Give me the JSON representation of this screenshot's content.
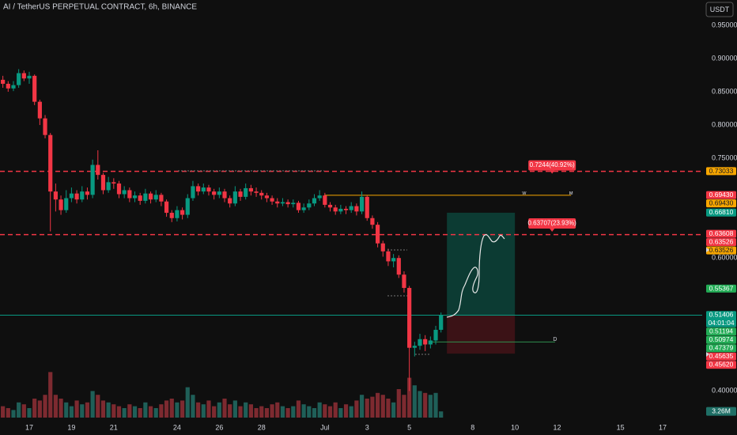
{
  "chart_data": {
    "type": "candlestick",
    "title": "AI / TetherUS PERPETUAL CONTRACT, 6h, BINANCE",
    "currency": "USDT",
    "up_color": "#089981",
    "down_color": "#f23645",
    "volume_up_color": "#1f5f58",
    "volume_down_color": "#7d2a30",
    "xlim": [
      15.614,
      48.87
    ],
    "xticks": [
      17,
      19,
      21,
      24,
      26,
      28,
      {
        "value": 31,
        "label": "Jul"
      },
      {
        "value": 33,
        "label": "3"
      },
      {
        "value": 35,
        "label": "5"
      },
      {
        "value": 38,
        "label": "8"
      },
      {
        "value": 40,
        "label": "10"
      },
      {
        "value": 42,
        "label": "12"
      },
      {
        "value": 45,
        "label": "15"
      },
      {
        "value": 47,
        "label": "17"
      }
    ],
    "ylim": [
      0.36,
      0.988
    ],
    "yticks": [
      {
        "value": 0.95,
        "label": "0.95000"
      },
      {
        "value": 0.9,
        "label": "0.90000"
      },
      {
        "value": 0.85,
        "label": "0.85000"
      },
      {
        "value": 0.8,
        "label": "0.80000"
      },
      {
        "value": 0.75,
        "label": "0.75000"
      },
      {
        "value": 0.6,
        "label": "0.60000"
      },
      {
        "value": 0.4,
        "label": "0.40000"
      }
    ],
    "x": [
      15.75,
      16,
      16.25,
      16.5,
      16.75,
      17,
      17.25,
      17.5,
      17.75,
      18,
      18.25,
      18.5,
      18.75,
      19,
      19.25,
      19.5,
      19.75,
      20,
      20.25,
      20.5,
      20.75,
      21,
      21.25,
      21.5,
      21.75,
      22,
      22.25,
      22.5,
      22.75,
      23,
      23.25,
      23.5,
      23.75,
      24,
      24.25,
      24.5,
      24.75,
      25,
      25.25,
      25.5,
      25.75,
      26,
      26.25,
      26.5,
      26.75,
      27,
      27.25,
      27.5,
      27.75,
      28,
      28.25,
      28.5,
      28.75,
      29,
      29.25,
      29.5,
      29.75,
      30,
      30.25,
      30.5,
      30.75,
      31,
      31.25,
      31.5,
      31.75,
      32,
      32.25,
      32.5,
      32.75,
      33,
      33.25,
      33.5,
      33.75,
      34,
      34.25,
      34.5,
      34.75,
      35,
      35.25,
      35.5,
      35.75,
      36,
      36.25,
      36.5
    ],
    "open": [
      0.868,
      0.862,
      0.855,
      0.86,
      0.878,
      0.87,
      0.874,
      0.835,
      0.81,
      0.785,
      0.7,
      0.688,
      0.672,
      0.69,
      0.697,
      0.688,
      0.7,
      0.695,
      0.74,
      0.725,
      0.702,
      0.714,
      0.712,
      0.696,
      0.702,
      0.69,
      0.694,
      0.686,
      0.697,
      0.688,
      0.695,
      0.685,
      0.668,
      0.66,
      0.672,
      0.665,
      0.69,
      0.708,
      0.7,
      0.706,
      0.7,
      0.695,
      0.7,
      0.69,
      0.682,
      0.7,
      0.692,
      0.705,
      0.7,
      0.698,
      0.694,
      0.69,
      0.685,
      0.682,
      0.684,
      0.681,
      0.683,
      0.672,
      0.676,
      0.682,
      0.69,
      0.694,
      0.68,
      0.676,
      0.67,
      0.674,
      0.672,
      0.678,
      0.67,
      0.692,
      0.66,
      0.65,
      0.622,
      0.61,
      0.595,
      0.6,
      0.575,
      0.555,
      0.465,
      0.468,
      0.478,
      0.47,
      0.476,
      0.492
    ],
    "high": [
      0.874,
      0.866,
      0.866,
      0.884,
      0.882,
      0.88,
      0.876,
      0.838,
      0.815,
      0.788,
      0.712,
      0.694,
      0.702,
      0.706,
      0.702,
      0.708,
      0.706,
      0.748,
      0.762,
      0.728,
      0.722,
      0.72,
      0.716,
      0.708,
      0.706,
      0.7,
      0.698,
      0.704,
      0.7,
      0.702,
      0.698,
      0.688,
      0.672,
      0.678,
      0.676,
      0.696,
      0.716,
      0.712,
      0.712,
      0.71,
      0.704,
      0.706,
      0.704,
      0.694,
      0.708,
      0.704,
      0.712,
      0.71,
      0.706,
      0.702,
      0.698,
      0.694,
      0.69,
      0.69,
      0.688,
      0.688,
      0.686,
      0.682,
      0.688,
      0.696,
      0.702,
      0.698,
      0.684,
      0.68,
      0.68,
      0.678,
      0.684,
      0.682,
      0.7,
      0.694,
      0.664,
      0.654,
      0.626,
      0.614,
      0.606,
      0.604,
      0.58,
      0.558,
      0.474,
      0.486,
      0.484,
      0.482,
      0.498,
      0.518
    ],
    "low": [
      0.856,
      0.85,
      0.851,
      0.856,
      0.866,
      0.862,
      0.83,
      0.8,
      0.78,
      0.64,
      0.67,
      0.665,
      0.668,
      0.684,
      0.682,
      0.684,
      0.688,
      0.69,
      0.718,
      0.696,
      0.698,
      0.704,
      0.69,
      0.69,
      0.684,
      0.684,
      0.68,
      0.682,
      0.682,
      0.684,
      0.678,
      0.662,
      0.654,
      0.655,
      0.658,
      0.66,
      0.686,
      0.694,
      0.696,
      0.694,
      0.688,
      0.69,
      0.684,
      0.676,
      0.678,
      0.686,
      0.688,
      0.694,
      0.692,
      0.688,
      0.684,
      0.68,
      0.676,
      0.678,
      0.676,
      0.676,
      0.668,
      0.668,
      0.672,
      0.678,
      0.686,
      0.676,
      0.67,
      0.665,
      0.666,
      0.666,
      0.668,
      0.664,
      0.666,
      0.656,
      0.644,
      0.616,
      0.602,
      0.588,
      0.586,
      0.57,
      0.548,
      0.4,
      0.452,
      0.462,
      0.46,
      0.464,
      0.47,
      0.488
    ],
    "close": [
      0.862,
      0.855,
      0.86,
      0.878,
      0.87,
      0.874,
      0.835,
      0.81,
      0.785,
      0.7,
      0.688,
      0.672,
      0.69,
      0.697,
      0.688,
      0.7,
      0.695,
      0.74,
      0.725,
      0.702,
      0.714,
      0.712,
      0.696,
      0.702,
      0.69,
      0.694,
      0.686,
      0.697,
      0.688,
      0.695,
      0.685,
      0.668,
      0.66,
      0.672,
      0.665,
      0.69,
      0.708,
      0.7,
      0.706,
      0.7,
      0.695,
      0.7,
      0.69,
      0.682,
      0.7,
      0.692,
      0.705,
      0.7,
      0.698,
      0.694,
      0.69,
      0.685,
      0.682,
      0.684,
      0.681,
      0.683,
      0.672,
      0.676,
      0.682,
      0.69,
      0.694,
      0.68,
      0.676,
      0.67,
      0.674,
      0.672,
      0.678,
      0.67,
      0.692,
      0.66,
      0.65,
      0.622,
      0.61,
      0.595,
      0.6,
      0.575,
      0.555,
      0.465,
      0.468,
      0.478,
      0.47,
      0.476,
      0.492,
      0.514
    ],
    "volume": {
      "values": [
        6,
        5,
        4,
        8,
        7,
        5,
        10,
        9,
        12,
        24,
        12,
        10,
        8,
        6,
        9,
        7,
        8,
        14,
        12,
        9,
        8,
        7,
        6,
        5,
        7,
        6,
        5,
        8,
        6,
        5,
        7,
        9,
        10,
        8,
        9,
        16,
        12,
        8,
        7,
        9,
        6,
        8,
        10,
        7,
        9,
        6,
        8,
        7,
        5,
        6,
        5,
        7,
        8,
        6,
        5,
        6,
        9,
        7,
        6,
        5,
        8,
        7,
        6,
        8,
        5,
        7,
        6,
        9,
        12,
        10,
        11,
        13,
        12,
        10,
        8,
        15,
        12,
        21,
        17,
        14,
        13,
        12,
        13,
        3.26
      ],
      "last_value_label": "3.26M",
      "color": "#1f6f66"
    },
    "lines": [
      {
        "value": 0.73033,
        "color": "#f23645",
        "dashed": true
      },
      {
        "value": 0.63526,
        "color": "#f23645",
        "dashed": true
      },
      {
        "value": 0.51406,
        "color": "#089981",
        "dashed": false
      },
      {
        "value": 0.6943,
        "color": "#f7a600",
        "dashed": false,
        "x": [
          30.97,
          42.66
        ],
        "labels": [
          "w",
          "м"
        ]
      },
      {
        "value": 0.47379,
        "color": "#2f8f4e",
        "dashed": false,
        "x": [
          36.0,
          41.9
        ],
        "labels": [
          "D"
        ]
      }
    ],
    "position": {
      "entry": 0.51406,
      "target": 0.6681,
      "stop": 0.4562,
      "x": [
        36.78,
        40.0
      ],
      "target_color": "#0c3b33",
      "stop_color": "#3b1216"
    },
    "callouts": [
      {
        "value": 0.7244,
        "label": "0.7244(40.92%)",
        "color": "#f23645"
      },
      {
        "value": 0.63707,
        "label": "0.63707(23.93%)",
        "color": "#f23645"
      }
    ],
    "price_tags": [
      {
        "value": 0.73033,
        "label": "0.73033",
        "color": "#f7a600"
      },
      {
        "value": 0.6943,
        "label": "0.69430",
        "color": "#f23645"
      },
      {
        "value": 0.6943,
        "label": "0.69430",
        "color": "#f7a600"
      },
      {
        "value": 0.6681,
        "label": "0.66810",
        "color": "#089981"
      },
      {
        "value": 0.63608,
        "label": "0.63608",
        "color": "#f23645"
      },
      {
        "value": 0.63526,
        "label": "0.63526",
        "color": "#f23645"
      },
      {
        "value": 0.63526,
        "label": "0.63526",
        "color": "#f7a600"
      },
      {
        "value": 0.55367,
        "label": "0.55367",
        "color": "#22ab55"
      },
      {
        "value": 0.51406,
        "label": "0.51406",
        "color": "#089981",
        "countdown": "04:01:04"
      },
      {
        "value": 0.51194,
        "label": "0.51194",
        "color": "#22ab55"
      },
      {
        "value": 0.50974,
        "label": "0.50974",
        "color": "#22ab55"
      },
      {
        "value": 0.47379,
        "label": "0.47379",
        "color": "#22ab55"
      },
      {
        "value": 0.45635,
        "label": "0.45635",
        "color": "#f23645"
      },
      {
        "value": 0.4562,
        "label": "0.45620",
        "color": "#f23645"
      }
    ]
  }
}
